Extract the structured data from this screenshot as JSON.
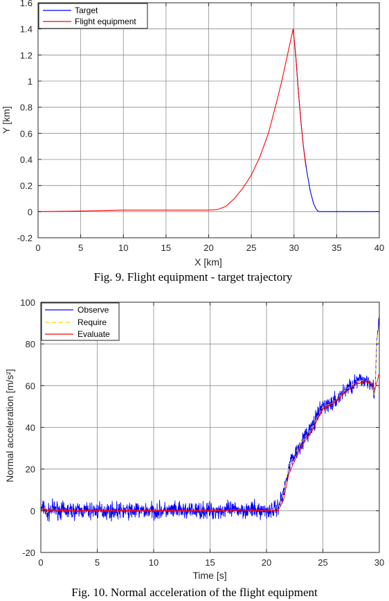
{
  "chart_data": [
    {
      "type": "line",
      "caption": "Fig. 9. Flight equipment - target trajectory",
      "xlabel": "X [km]",
      "ylabel": "Y [km]",
      "xlim": [
        0,
        40
      ],
      "ylim": [
        -0.2,
        1.6
      ],
      "xticks": [
        0,
        5,
        10,
        15,
        20,
        25,
        30,
        35,
        40
      ],
      "yticks": [
        -0.2,
        0,
        0.2,
        0.4,
        0.6,
        0.8,
        1,
        1.2,
        1.4,
        1.6
      ],
      "xtick_labels": [
        "0",
        "5",
        "10",
        "15",
        "20",
        "25",
        "30",
        "35",
        "40"
      ],
      "ytick_labels": [
        "-0.2",
        "0",
        "0.2",
        "0.4",
        "0.6",
        "0.8",
        "1",
        "1.2",
        "1.4",
        "1.6"
      ],
      "legend_position": "top-left",
      "series": [
        {
          "name": "Target",
          "color": "#0000ff",
          "x": [
            29.9,
            30.2,
            30.5,
            30.8,
            31.1,
            31.5,
            31.9,
            32.3,
            32.6,
            32.8,
            33.0,
            35,
            40
          ],
          "y": [
            1.4,
            1.2,
            0.93,
            0.7,
            0.5,
            0.31,
            0.16,
            0.06,
            0.02,
            0.005,
            0.0,
            0.0,
            0.0
          ]
        },
        {
          "name": "Flight equipment",
          "color": "#ff0000",
          "x": [
            0,
            5,
            10,
            15,
            20,
            21,
            22,
            23,
            24,
            25,
            26,
            27,
            28,
            28.6,
            29.2,
            29.6,
            29.9,
            30.2,
            30.5,
            30.8,
            31.1,
            31.4
          ],
          "y": [
            0.0,
            0.005,
            0.012,
            0.012,
            0.012,
            0.015,
            0.04,
            0.1,
            0.18,
            0.28,
            0.42,
            0.6,
            0.85,
            1.01,
            1.19,
            1.31,
            1.4,
            1.2,
            0.93,
            0.7,
            0.5,
            0.34
          ]
        }
      ]
    },
    {
      "type": "line",
      "caption": "Fig. 10. Normal acceleration of the flight equipment",
      "xlabel": "Time [s]",
      "ylabel": "Normal acceleration [m/s²]",
      "xlim": [
        0,
        30
      ],
      "ylim": [
        -20,
        100
      ],
      "xticks": [
        0,
        5,
        10,
        15,
        20,
        25,
        30
      ],
      "yticks": [
        -20,
        0,
        20,
        40,
        60,
        80,
        100
      ],
      "xtick_labels": [
        "0",
        "5",
        "10",
        "15",
        "20",
        "25",
        "30"
      ],
      "ytick_labels": [
        "-20",
        "0",
        "20",
        "40",
        "60",
        "80",
        "100"
      ],
      "legend_position": "top-left",
      "series": [
        {
          "name": "Observe",
          "color": "#0000ff",
          "style": "solid",
          "noise_amplitude": 6,
          "x": [
            0,
            0.3,
            0.5,
            1,
            2,
            5,
            10,
            15,
            18,
            20,
            20.9,
            21.5,
            22,
            23,
            24,
            25,
            26,
            27,
            28,
            28.8,
            29.3,
            29.6,
            29.8,
            30
          ],
          "y": [
            0,
            2,
            -2,
            1,
            0,
            0,
            0,
            0,
            0.5,
            0,
            1,
            8,
            22,
            32,
            40,
            50,
            52,
            58,
            62,
            63,
            62,
            56,
            82,
            92
          ]
        },
        {
          "name": "Require",
          "color": "#ffd700",
          "style": "dashed",
          "noise_amplitude": 0,
          "x": [
            0,
            0.3,
            0.5,
            1,
            2,
            5,
            10,
            15,
            18,
            20,
            20.9,
            21.5,
            22,
            23,
            24,
            25,
            26,
            27,
            28,
            28.8,
            29.3,
            29.6,
            29.8,
            30
          ],
          "y": [
            0,
            2,
            -1,
            1,
            0,
            0,
            0,
            0,
            0.5,
            0,
            1,
            8,
            22,
            32,
            40,
            50,
            52,
            58,
            62,
            63,
            62,
            55,
            84,
            88
          ]
        },
        {
          "name": "Evaluate",
          "color": "#ff0000",
          "style": "solid",
          "noise_amplitude": 0.6,
          "x": [
            0,
            0.3,
            0.5,
            1,
            2,
            5,
            10,
            15,
            18,
            20,
            21,
            21.5,
            22,
            23,
            24,
            25,
            26,
            27,
            28,
            28.8,
            29.3,
            29.6,
            29.8,
            30
          ],
          "y": [
            0,
            1,
            0,
            0.5,
            0,
            0,
            0,
            0,
            0.5,
            0,
            0,
            5,
            18,
            30,
            38,
            49,
            52,
            57,
            61,
            62,
            61,
            58,
            62,
            66
          ]
        }
      ]
    }
  ]
}
